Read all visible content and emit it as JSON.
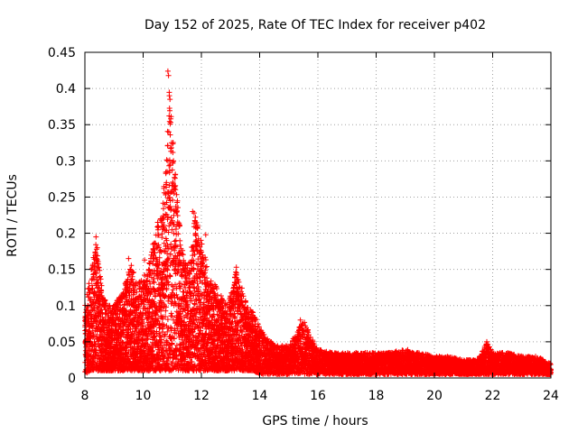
{
  "chart_data": {
    "type": "scatter",
    "title": "Day 152 of 2025, Rate Of TEC Index for receiver p402",
    "xlabel": "GPS time / hours",
    "ylabel": "ROTI / TECUs",
    "xlim": [
      8,
      24
    ],
    "ylim": [
      0,
      0.45
    ],
    "xticks": [
      8,
      10,
      12,
      14,
      16,
      18,
      20,
      22,
      24
    ],
    "xtick_labels": [
      "8",
      "10",
      "12",
      "14",
      "16",
      "18",
      "20",
      "22",
      "24"
    ],
    "yticks": [
      0,
      0.05,
      0.1,
      0.15,
      0.2,
      0.25,
      0.3,
      0.35,
      0.4,
      0.45
    ],
    "ytick_labels": [
      "0",
      "0.05",
      "0.1",
      "0.15",
      "0.2",
      "0.25",
      "0.3",
      "0.35",
      "0.4",
      "0.45"
    ],
    "grid": true,
    "marker": "+",
    "series": [
      {
        "name": "ROTI",
        "color": "#ff0000",
        "envelope_x": [
          8.0,
          8.2,
          8.4,
          8.6,
          8.8,
          9.0,
          9.3,
          9.6,
          9.8,
          10.0,
          10.2,
          10.4,
          10.6,
          10.8,
          10.9,
          11.0,
          11.2,
          11.4,
          11.6,
          11.8,
          12.0,
          12.3,
          12.6,
          12.9,
          13.2,
          13.5,
          13.8,
          14.0,
          14.5,
          15.0,
          15.5,
          16.0,
          16.5,
          17.0,
          17.5,
          18.0,
          18.5,
          19.0,
          19.5,
          20.0,
          20.5,
          21.0,
          21.5,
          21.8,
          22.0,
          22.5,
          23.0,
          23.5,
          24.0
        ],
        "envelope_y": [
          0.1,
          0.15,
          0.19,
          0.12,
          0.1,
          0.1,
          0.12,
          0.16,
          0.13,
          0.14,
          0.16,
          0.2,
          0.22,
          0.3,
          0.42,
          0.34,
          0.24,
          0.16,
          0.16,
          0.23,
          0.19,
          0.14,
          0.12,
          0.1,
          0.15,
          0.11,
          0.09,
          0.07,
          0.045,
          0.045,
          0.08,
          0.04,
          0.035,
          0.035,
          0.035,
          0.035,
          0.035,
          0.04,
          0.035,
          0.03,
          0.03,
          0.025,
          0.025,
          0.05,
          0.035,
          0.035,
          0.03,
          0.03,
          0.02
        ],
        "baseline_y": [
          0.005,
          0.01,
          0.01,
          0.01,
          0.01,
          0.01,
          0.01,
          0.01,
          0.01,
          0.01,
          0.01,
          0.01,
          0.01,
          0.01,
          0.01,
          0.01,
          0.01,
          0.01,
          0.01,
          0.01,
          0.01,
          0.01,
          0.01,
          0.01,
          0.01,
          0.01,
          0.01,
          0.005,
          0.005,
          0.005,
          0.005,
          0.005,
          0.005,
          0.005,
          0.005,
          0.005,
          0.005,
          0.005,
          0.005,
          0.005,
          0.005,
          0.005,
          0.005,
          0.005,
          0.005,
          0.005,
          0.005,
          0.005,
          0.005
        ],
        "peaks": [
          {
            "x": 10.85,
            "y": 0.424
          },
          {
            "x": 10.87,
            "y": 0.418
          },
          {
            "x": 10.9,
            "y": 0.39
          },
          {
            "x": 10.92,
            "y": 0.385
          },
          {
            "x": 10.95,
            "y": 0.358
          },
          {
            "x": 10.88,
            "y": 0.34
          },
          {
            "x": 10.93,
            "y": 0.336
          },
          {
            "x": 10.97,
            "y": 0.318
          },
          {
            "x": 10.85,
            "y": 0.3
          },
          {
            "x": 10.82,
            "y": 0.285
          },
          {
            "x": 10.8,
            "y": 0.27
          },
          {
            "x": 10.78,
            "y": 0.255
          },
          {
            "x": 10.75,
            "y": 0.24
          },
          {
            "x": 10.93,
            "y": 0.245
          },
          {
            "x": 10.95,
            "y": 0.232
          },
          {
            "x": 11.7,
            "y": 0.23
          },
          {
            "x": 11.75,
            "y": 0.228
          },
          {
            "x": 10.5,
            "y": 0.215
          },
          {
            "x": 10.6,
            "y": 0.22
          },
          {
            "x": 12.15,
            "y": 0.198
          },
          {
            "x": 11.8,
            "y": 0.2
          },
          {
            "x": 8.38,
            "y": 0.195
          },
          {
            "x": 8.4,
            "y": 0.178
          },
          {
            "x": 9.5,
            "y": 0.165
          },
          {
            "x": 10.05,
            "y": 0.163
          },
          {
            "x": 13.2,
            "y": 0.153
          },
          {
            "x": 15.4,
            "y": 0.08
          },
          {
            "x": 21.8,
            "y": 0.05
          },
          {
            "x": 8.1,
            "y": 0.1
          }
        ]
      }
    ]
  }
}
